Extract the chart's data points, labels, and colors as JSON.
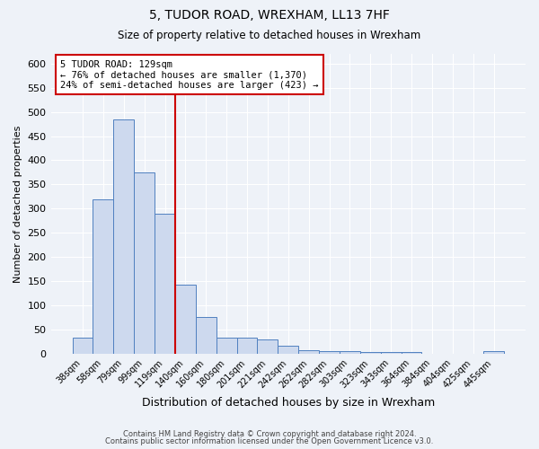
{
  "title1": "5, TUDOR ROAD, WREXHAM, LL13 7HF",
  "title2": "Size of property relative to detached houses in Wrexham",
  "xlabel": "Distribution of detached houses by size in Wrexham",
  "ylabel": "Number of detached properties",
  "categories": [
    "38sqm",
    "58sqm",
    "79sqm",
    "99sqm",
    "119sqm",
    "140sqm",
    "160sqm",
    "180sqm",
    "201sqm",
    "221sqm",
    "242sqm",
    "262sqm",
    "282sqm",
    "303sqm",
    "323sqm",
    "343sqm",
    "364sqm",
    "384sqm",
    "404sqm",
    "425sqm",
    "445sqm"
  ],
  "values": [
    33,
    320,
    485,
    375,
    290,
    143,
    76,
    33,
    33,
    29,
    16,
    7,
    5,
    5,
    4,
    4,
    4,
    0,
    0,
    0,
    5
  ],
  "bar_color": "#cdd9ee",
  "bar_edge_color": "#5080c0",
  "vline_color": "#cc0000",
  "vline_pos": 4.5,
  "annotation_line1": "5 TUDOR ROAD: 129sqm",
  "annotation_line2": "← 76% of detached houses are smaller (1,370)",
  "annotation_line3": "24% of semi-detached houses are larger (423) →",
  "annotation_box_color": "#ffffff",
  "annotation_box_edge": "#cc0000",
  "ylim": [
    0,
    620
  ],
  "yticks": [
    0,
    50,
    100,
    150,
    200,
    250,
    300,
    350,
    400,
    450,
    500,
    550,
    600
  ],
  "footer1": "Contains HM Land Registry data © Crown copyright and database right 2024.",
  "footer2": "Contains public sector information licensed under the Open Government Licence v3.0.",
  "background_color": "#eef2f8",
  "plot_bg_color": "#eef2f8"
}
